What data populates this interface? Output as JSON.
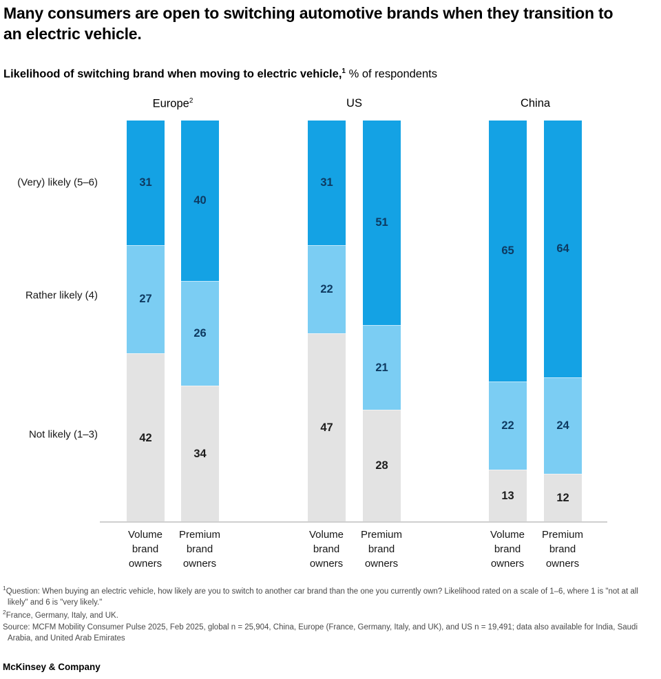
{
  "title": "Many consumers are open to switching automotive brands when they transition to an electric vehicle.",
  "subtitle": {
    "bold": "Likelihood of switching brand when moving to electric vehicle,",
    "superscript": "1",
    "rest": " % of respondents"
  },
  "chart_data": {
    "type": "bar",
    "variant": "100%-stacked-vertical",
    "unit": "% of respondents",
    "ylim": [
      0,
      100
    ],
    "grid": false,
    "legend_position": "none (category labels at left)",
    "colors": [
      "#14A2E4",
      "#7BCDF3",
      "#E3E3E3"
    ],
    "value_colors": [
      "#0E3A61",
      "#0E3A61",
      "#1D1D1D"
    ],
    "series_names": [
      "(Very) likely (5–6)",
      "Rather likely (4)",
      "Not likely (1–3)"
    ],
    "row_labels": [
      "(Very) likely (5–6)",
      "Rather likely (4)",
      "Not likely (1–3)"
    ],
    "groups": [
      {
        "label": "Europe",
        "label_sup": "2",
        "bars": [
          {
            "label": "Volume brand owners",
            "label_lines": [
              "Volume",
              "brand",
              "owners"
            ],
            "values": [
              31,
              27,
              42
            ]
          },
          {
            "label": "Premium brand owners",
            "label_lines": [
              "Premium",
              "brand",
              "owners"
            ],
            "values": [
              40,
              26,
              34
            ]
          }
        ]
      },
      {
        "label": "US",
        "label_sup": "",
        "bars": [
          {
            "label": "Volume brand owners",
            "label_lines": [
              "Volume",
              "brand",
              "owners"
            ],
            "values": [
              31,
              22,
              47
            ]
          },
          {
            "label": "Premium brand owners",
            "label_lines": [
              "Premium",
              "brand",
              "owners"
            ],
            "values": [
              51,
              21,
              28
            ]
          }
        ]
      },
      {
        "label": "China",
        "label_sup": "",
        "bars": [
          {
            "label": "Volume brand owners",
            "label_lines": [
              "Volume",
              "brand",
              "owners"
            ],
            "values": [
              65,
              22,
              13
            ]
          },
          {
            "label": "Premium brand owners",
            "label_lines": [
              "Premium",
              "brand",
              "owners"
            ],
            "values": [
              64,
              24,
              12
            ]
          }
        ]
      }
    ]
  },
  "footnotes": [
    {
      "sup": "1",
      "text": "Question: When buying an electric vehicle, how likely are you to switch to another car brand than the one you currently own? Likelihood rated on a scale of 1–6, where 1 is \"not at all likely\" and 6 is \"very likely.\""
    },
    {
      "sup": "2",
      "text": "France, Germany, Italy, and UK."
    },
    {
      "sup": "",
      "text": "Source: MCFM Mobility Consumer Pulse 2025, Feb 2025, global n = 25,904, China, Europe (France, Germany, Italy, and UK), and US n = 19,491; data also available for India, Saudi Arabia, and United Arab Emirates"
    }
  ],
  "footer": "McKinsey & Company"
}
